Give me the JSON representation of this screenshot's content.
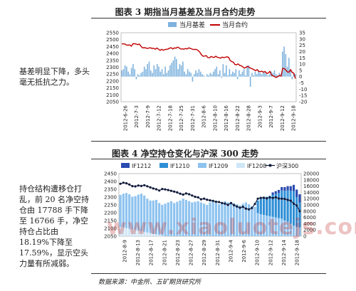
{
  "texts": {
    "fig3_title": "图表 3  期指当月基差及当月合约走势",
    "fig4_title": "图表 4  净空持仓变化与沪深 300 走势",
    "side_note_1": "基差明显下降，多头毫无抵抗之力。",
    "side_note_2": "持仓结构遭移仓打乱，前 20 名净空持仓由 17788 手下降至 16766 手，净空持仓占比由 18.19%下降至 17.59%，显示空头力量有所减弱。",
    "source": "数据来源：中金所、五矿期货研究所",
    "watermark": "www.xiaoluotejs.com"
  },
  "chart_data": [
    {
      "type": "bar+line",
      "title": "图表 3  期指当月基差及当月合约走势",
      "colors": {
        "basis": "#7fb3de",
        "contract": "#c00000"
      },
      "x_ticks": [
        "2012-6-26",
        "2012-7-3",
        "2012-7-9",
        "2012-7-12",
        "2012-7-18",
        "2012-7-25",
        "2012-7-31",
        "2012-8-6",
        "2012-8-10",
        "2012-8-16",
        "2012-8-22",
        "2012-8-28",
        "2012-9-3",
        "2012-9-7",
        "2012-9-12",
        "2012-9-18"
      ],
      "y_left": {
        "ticks": [
          "2050",
          "2100",
          "2150",
          "2200",
          "2250",
          "2300",
          "2350",
          "2400",
          "2450",
          "2500",
          "2550"
        ],
        "range": [
          2050,
          2550
        ]
      },
      "y_right": {
        "ticks": [
          "-20",
          "-15",
          "-10",
          "-5",
          "0",
          "5",
          "10",
          "15",
          "20",
          "25",
          "30",
          "35"
        ],
        "range": [
          -20,
          35
        ]
      },
      "series": [
        {
          "name": "当月基差",
          "axis": "right",
          "kind": "bar",
          "values": [
            5,
            6,
            9,
            8,
            4,
            2,
            7,
            10,
            6,
            -2,
            2,
            1,
            3,
            4,
            8,
            6,
            10,
            12,
            5,
            3,
            9,
            6,
            10,
            8,
            4,
            6,
            2,
            8,
            3,
            5,
            9,
            11,
            13,
            16,
            14,
            6,
            10,
            9,
            12,
            4,
            2,
            6,
            4,
            3,
            -4,
            2,
            5,
            3,
            6,
            4,
            2,
            1,
            0,
            2,
            1,
            3,
            2,
            4,
            6,
            8,
            2,
            5,
            -1,
            10,
            3,
            9,
            1,
            6,
            2,
            4,
            3,
            6,
            -2,
            5,
            2,
            4,
            6,
            1,
            8,
            9,
            -8,
            3,
            1,
            4,
            2,
            5,
            3,
            2,
            4,
            3,
            2,
            1,
            2,
            4,
            3,
            5,
            2,
            1,
            3,
            2,
            20,
            24,
            18,
            8,
            15,
            6,
            -2,
            3,
            2
          ]
        },
        {
          "name": "当月合约",
          "axis": "left",
          "kind": "line",
          "values": [
            2470,
            2469,
            2468,
            2461,
            2460,
            2462,
            2452,
            2470,
            2470,
            2468,
            2464,
            2468,
            2452,
            2440,
            2442,
            2440,
            2436,
            2439,
            2441,
            2435,
            2438,
            2430,
            2439,
            2431,
            2422,
            2430,
            2423,
            2428,
            2430,
            2432,
            2438,
            2442,
            2432,
            2440,
            2438,
            2446,
            2440,
            2432,
            2433,
            2431,
            2436,
            2432,
            2440,
            2437,
            2432,
            2428,
            2430,
            2428,
            2420,
            2409,
            2390,
            2380,
            2381,
            2384,
            2370,
            2368,
            2378,
            2373,
            2371,
            2380,
            2372,
            2369,
            2366,
            2373,
            2370,
            2372,
            2375,
            2372,
            2350,
            2341,
            2337,
            2320,
            2318,
            2324,
            2314,
            2311,
            2302,
            2294,
            2300,
            2307,
            2298,
            2293,
            2288,
            2282,
            2275,
            2283,
            2270,
            2268,
            2271,
            2264,
            2269,
            2255,
            2258,
            2270,
            2245,
            2238,
            2232,
            2226,
            2233,
            2240,
            2236,
            2292,
            2290,
            2280,
            2266,
            2264,
            2282,
            2262,
            2257,
            2218
          ]
        }
      ]
    },
    {
      "type": "stacked-area+line",
      "title": "图表 4  净空持仓变化与沪深 300 走势",
      "colors": {
        "IF1212": "#2a4bb0",
        "IF1210": "#2f8fd6",
        "IF1209": "#8ec3ef",
        "IF1208": "#cfe6f7",
        "hs300": "#101a3a"
      },
      "x_ticks": [
        "2012-8-9",
        "2012-8-13",
        "2012-8-17",
        "2012-8-21",
        "2012-8-23",
        "2012-8-27",
        "2012-8-29",
        "2012-8-31",
        "2012-9-4",
        "2012-9-6",
        "2012-9-10",
        "2012-9-12",
        "2012-9-14",
        "2012-9-18"
      ],
      "y_left": {
        "ticks": [
          "2050",
          "2100",
          "2150",
          "2200",
          "2250",
          "2300",
          "2350",
          "2400",
          "2450"
        ],
        "range": [
          2050,
          2450
        ]
      },
      "y_right": {
        "ticks": [
          "0",
          "2000",
          "4000",
          "6000",
          "8000",
          "10000",
          "12000",
          "14000",
          "16000",
          "18000",
          "20000"
        ],
        "range": [
          0,
          20000
        ]
      },
      "series": [
        {
          "name": "IF1212",
          "axis": "right",
          "kind": "bar",
          "values": [
            0,
            0,
            0,
            0,
            0,
            0,
            0,
            0,
            0,
            0,
            0,
            0,
            0,
            0,
            0,
            0,
            0,
            0,
            0,
            0,
            0,
            0,
            0,
            0,
            0,
            0,
            0,
            0,
            0,
            0,
            0,
            0,
            0,
            0,
            0,
            0,
            0,
            0,
            0,
            0,
            0,
            0,
            0,
            0,
            0,
            0,
            0,
            0,
            0,
            0,
            0,
            800,
            900,
            1000,
            1100,
            1200,
            1400,
            1500,
            2000,
            2400,
            2600
          ]
        },
        {
          "name": "IF1210",
          "axis": "right",
          "kind": "bar",
          "values": [
            0,
            0,
            0,
            0,
            0,
            0,
            0,
            0,
            0,
            0,
            0,
            0,
            0,
            0,
            0,
            0,
            0,
            0,
            0,
            0,
            0,
            0,
            0,
            0,
            0,
            0,
            0,
            0,
            0,
            0,
            0,
            0,
            0,
            0,
            0,
            0,
            0,
            0,
            0,
            0,
            0,
            0,
            0,
            0,
            0,
            0,
            4000,
            5000,
            5500,
            6000,
            6500,
            7000,
            7500,
            8000,
            9000,
            9500,
            10000,
            10500,
            11000,
            9500,
            8000
          ]
        },
        {
          "name": "IF1209",
          "axis": "right",
          "kind": "bar",
          "values": [
            10200,
            10800,
            11200,
            11000,
            10400,
            10800,
            11500,
            12000,
            11600,
            10800,
            10400,
            10600,
            11000,
            10200,
            9800,
            10400,
            10800,
            11200,
            10600,
            11000,
            11400,
            12000,
            11600,
            11200,
            10800,
            11000,
            11200,
            10800,
            10400,
            10000,
            10800,
            11200,
            10600,
            10200,
            10800,
            11200,
            10800,
            10400,
            10600,
            10200,
            9800,
            10400,
            10800,
            10200,
            9600,
            9400,
            7400,
            7000,
            6800,
            6600,
            6400,
            6200,
            6000,
            5800,
            5600,
            5000,
            4600,
            4000,
            3400,
            3000,
            2800
          ]
        },
        {
          "name": "IF1208",
          "axis": "right",
          "kind": "bar",
          "values": [
            3000,
            2800,
            2600,
            2400,
            2200,
            2000,
            1800,
            1600,
            1400,
            1200,
            1000,
            800,
            600,
            400,
            200,
            0,
            0,
            0,
            0,
            0,
            0,
            0,
            0,
            0,
            0,
            0,
            0,
            0,
            0,
            0,
            0,
            0,
            0,
            0,
            0,
            0,
            0,
            0,
            0,
            0,
            0,
            0,
            0,
            0,
            0,
            0,
            0,
            0,
            0,
            0,
            0,
            0,
            0,
            0,
            0,
            0,
            0,
            0,
            0,
            0,
            0
          ]
        },
        {
          "name": "沪深300",
          "axis": "left",
          "kind": "line",
          "values": [
            2385,
            2392,
            2388,
            2380,
            2370,
            2368,
            2374,
            2371,
            2376,
            2369,
            2362,
            2355,
            2350,
            2342,
            2352,
            2349,
            2345,
            2340,
            2335,
            2330,
            2322,
            2316,
            2323,
            2318,
            2310,
            2302,
            2298,
            2286,
            2290,
            2283,
            2279,
            2276,
            2270,
            2268,
            2262,
            2258,
            2250,
            2262,
            2248,
            2240,
            2232,
            2238,
            2226,
            2222,
            2230,
            2256,
            2290,
            2295,
            2296,
            2292,
            2298,
            2294,
            2299,
            2291,
            2290,
            2288,
            2282,
            2277,
            2258,
            2246,
            2210
          ]
        }
      ]
    }
  ]
}
